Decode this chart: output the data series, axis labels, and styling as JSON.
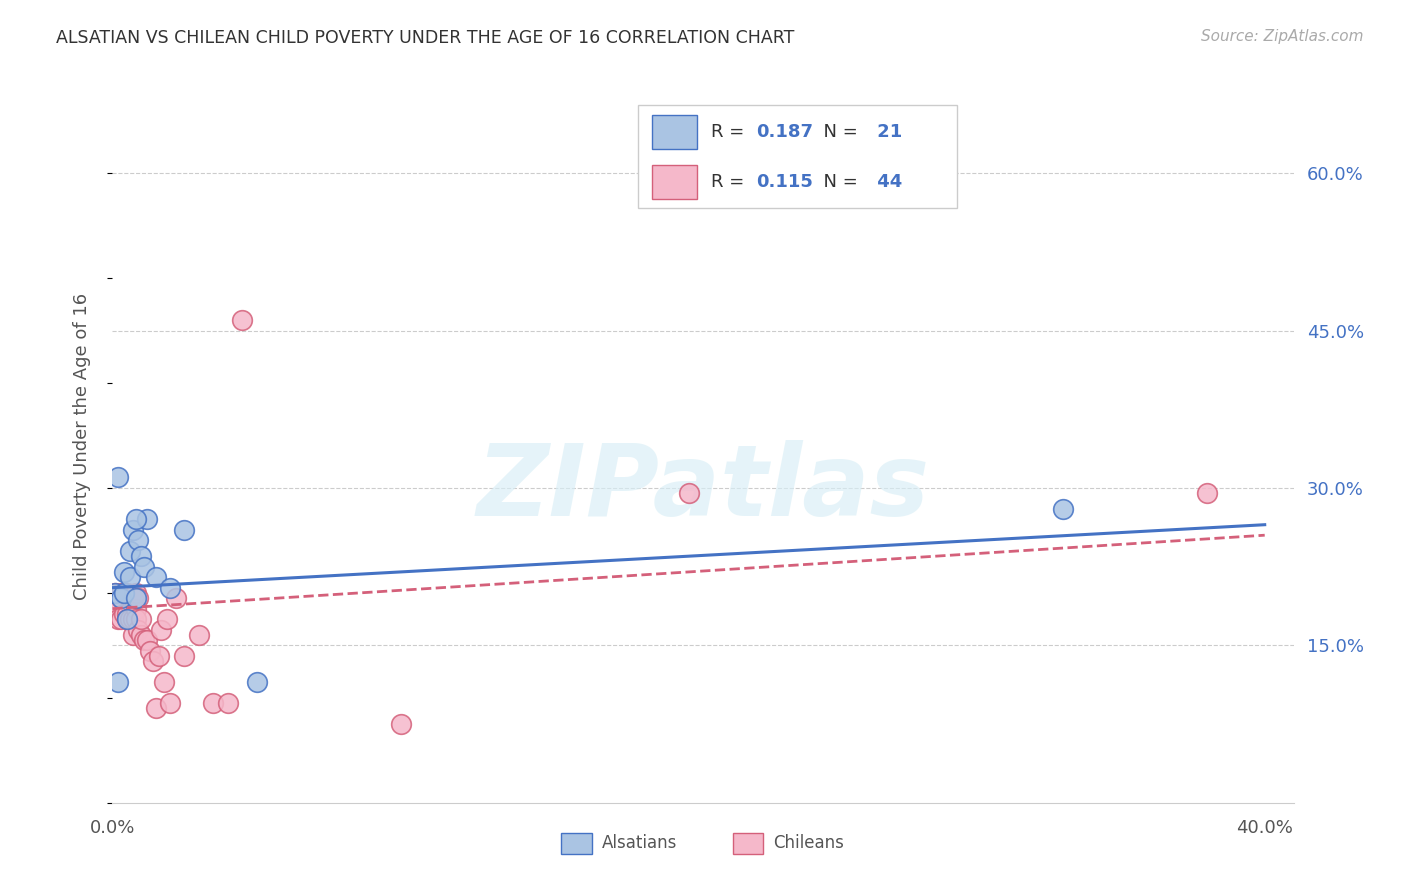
{
  "title": "ALSATIAN VS CHILEAN CHILD POVERTY UNDER THE AGE OF 16 CORRELATION CHART",
  "source": "Source: ZipAtlas.com",
  "ylabel": "Child Poverty Under the Age of 16",
  "ytick_labels": [
    "15.0%",
    "30.0%",
    "45.0%",
    "60.0%"
  ],
  "ytick_values": [
    0.15,
    0.3,
    0.45,
    0.6
  ],
  "xtick_labels": [
    "0.0%",
    "40.0%"
  ],
  "xtick_values": [
    0.0,
    0.4
  ],
  "xlim": [
    0.0,
    0.41
  ],
  "ylim": [
    0.0,
    0.68
  ],
  "alsatian_color": "#aac4e3",
  "alsatian_edge_color": "#4472c4",
  "chilean_color": "#f5b8ca",
  "chilean_edge_color": "#d4607a",
  "alsatian_line_color": "#4472c4",
  "chilean_line_color": "#d4607a",
  "alsatian_x": [
    0.001,
    0.002,
    0.003,
    0.004,
    0.004,
    0.005,
    0.006,
    0.006,
    0.007,
    0.008,
    0.009,
    0.01,
    0.011,
    0.012,
    0.015,
    0.02,
    0.025,
    0.05,
    0.33,
    0.002,
    0.008
  ],
  "alsatian_y": [
    0.2,
    0.31,
    0.195,
    0.22,
    0.2,
    0.175,
    0.24,
    0.215,
    0.26,
    0.195,
    0.25,
    0.235,
    0.225,
    0.27,
    0.215,
    0.205,
    0.26,
    0.115,
    0.28,
    0.115,
    0.27
  ],
  "chilean_x": [
    0.001,
    0.001,
    0.002,
    0.002,
    0.003,
    0.003,
    0.003,
    0.004,
    0.004,
    0.005,
    0.005,
    0.005,
    0.006,
    0.006,
    0.006,
    0.007,
    0.007,
    0.007,
    0.008,
    0.008,
    0.008,
    0.009,
    0.009,
    0.01,
    0.01,
    0.011,
    0.012,
    0.013,
    0.014,
    0.015,
    0.016,
    0.017,
    0.018,
    0.019,
    0.02,
    0.022,
    0.025,
    0.03,
    0.035,
    0.04,
    0.045,
    0.1,
    0.2,
    0.38
  ],
  "chilean_y": [
    0.2,
    0.185,
    0.185,
    0.175,
    0.2,
    0.175,
    0.195,
    0.18,
    0.2,
    0.18,
    0.175,
    0.2,
    0.195,
    0.175,
    0.195,
    0.16,
    0.175,
    0.195,
    0.185,
    0.175,
    0.2,
    0.165,
    0.195,
    0.16,
    0.175,
    0.155,
    0.155,
    0.145,
    0.135,
    0.09,
    0.14,
    0.165,
    0.115,
    0.175,
    0.095,
    0.195,
    0.14,
    0.16,
    0.095,
    0.095,
    0.46,
    0.075,
    0.295,
    0.295
  ],
  "als_line_x0": 0.0,
  "als_line_x1": 0.4,
  "als_line_y0": 0.205,
  "als_line_y1": 0.265,
  "chi_line_x0": 0.0,
  "chi_line_x1": 0.4,
  "chi_line_y0": 0.185,
  "chi_line_y1": 0.255,
  "watermark_text": "ZIPatlas",
  "legend_R1": "0.187",
  "legend_N1": "21",
  "legend_R2": "0.115",
  "legend_N2": "44"
}
